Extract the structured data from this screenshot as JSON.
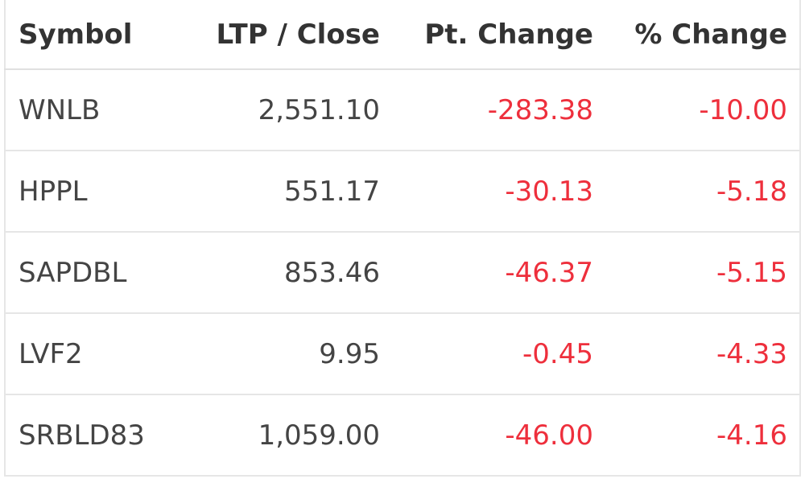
{
  "table": {
    "headers": [
      "Symbol",
      "LTP / Close",
      "Pt. Change",
      "% Change"
    ],
    "rows": [
      [
        "WNLB",
        "2,551.10",
        "-283.38",
        "-10.00"
      ],
      [
        "HPPL",
        "551.17",
        "-30.13",
        "-5.18"
      ],
      [
        "SAPDBL",
        "853.46",
        "-46.37",
        "-5.15"
      ],
      [
        "LVF2",
        "9.95",
        "-0.45",
        "-4.33"
      ],
      [
        "SRBLD83",
        "1,059.00",
        "-46.00",
        "-4.16"
      ]
    ]
  }
}
